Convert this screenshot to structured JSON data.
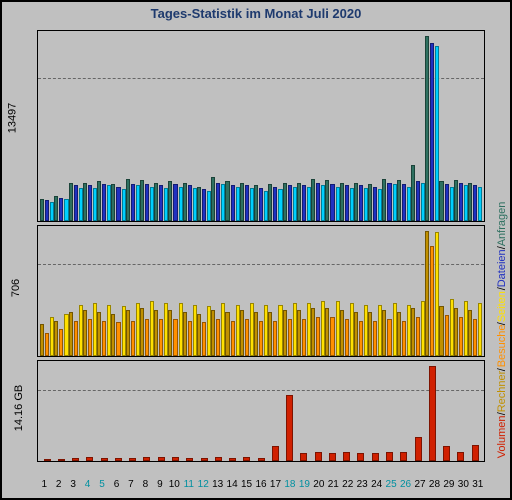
{
  "title": "Tages-Statistik im Monat Juli 2020",
  "title_color": "#1e3a6e",
  "background": "#c0c0c0",
  "border_color": "#000000",
  "days": [
    1,
    2,
    3,
    4,
    5,
    6,
    7,
    8,
    9,
    10,
    11,
    12,
    13,
    14,
    15,
    16,
    17,
    18,
    19,
    20,
    21,
    22,
    23,
    24,
    25,
    26,
    27,
    28,
    29,
    30,
    31
  ],
  "weekend_days": [
    4,
    5,
    11,
    12,
    18,
    19,
    25,
    26
  ],
  "day_label_color": "#000000",
  "weekend_color": "#0090a0",
  "panels": {
    "top": {
      "ymax": 13497,
      "ylabel": "13497",
      "grid_at": [
        0.75
      ],
      "series_colors": [
        "#2e7060",
        "#2030c0",
        "#00d0ff"
      ],
      "data": [
        [
          1600,
          1800,
          2800,
          2800,
          2900,
          2700,
          3100,
          3000,
          2800,
          2900,
          2800,
          2500,
          3200,
          2900,
          2800,
          2600,
          2700,
          2800,
          2800,
          3100,
          3000,
          2800,
          2800,
          2700,
          3100,
          3000,
          4100,
          13497,
          2900,
          3000,
          2800
        ],
        [
          1500,
          1700,
          2600,
          2600,
          2700,
          2500,
          2700,
          2700,
          2600,
          2700,
          2600,
          2300,
          2800,
          2600,
          2600,
          2400,
          2500,
          2600,
          2600,
          2800,
          2700,
          2600,
          2600,
          2500,
          2800,
          2700,
          2900,
          13000,
          2700,
          2800,
          2600
        ],
        [
          1400,
          1600,
          2400,
          2400,
          2600,
          2300,
          2600,
          2500,
          2400,
          2500,
          2400,
          2200,
          2700,
          2500,
          2400,
          2200,
          2300,
          2500,
          2500,
          2600,
          2500,
          2400,
          2400,
          2300,
          2700,
          2500,
          2800,
          12800,
          2500,
          2600,
          2500
        ]
      ]
    },
    "mid": {
      "ymax": 706,
      "ylabel": "706",
      "grid_at": [
        0.7
      ],
      "series_colors": [
        "#c09000",
        "#ff9000",
        "#ffe000"
      ],
      "data": [
        [
          180,
          200,
          250,
          260,
          250,
          240,
          260,
          270,
          260,
          260,
          250,
          240,
          260,
          250,
          260,
          250,
          250,
          260,
          260,
          270,
          270,
          260,
          250,
          250,
          260,
          250,
          270,
          706,
          280,
          270,
          260
        ],
        [
          130,
          150,
          200,
          210,
          200,
          190,
          200,
          210,
          210,
          210,
          200,
          190,
          210,
          200,
          210,
          200,
          200,
          210,
          210,
          220,
          220,
          210,
          200,
          200,
          210,
          200,
          220,
          620,
          230,
          220,
          210
        ],
        [
          220,
          240,
          290,
          300,
          290,
          280,
          300,
          310,
          300,
          300,
          290,
          280,
          300,
          290,
          300,
          290,
          290,
          300,
          300,
          310,
          310,
          300,
          290,
          290,
          300,
          290,
          310,
          700,
          320,
          310,
          300
        ]
      ]
    },
    "bot": {
      "ymax": 14.16,
      "ylabel": "14.16 GB",
      "grid_at": [
        0.7
      ],
      "series_colors": [
        "#d02000"
      ],
      "data": [
        [
          0.3,
          0.3,
          0.5,
          0.6,
          0.5,
          0.5,
          0.5,
          0.6,
          0.6,
          0.6,
          0.5,
          0.5,
          0.6,
          0.5,
          0.6,
          0.5,
          2.2,
          9.8,
          1.2,
          1.4,
          1.2,
          1.4,
          1.2,
          1.2,
          1.3,
          1.3,
          3.6,
          14.16,
          2.2,
          1.4,
          2.4
        ]
      ]
    }
  },
  "legend": [
    {
      "label": "Volumen",
      "color": "#d02000"
    },
    {
      "label": "Rechner",
      "color": "#c09000"
    },
    {
      "label": "Besuche",
      "color": "#ff9000"
    },
    {
      "label": "Seiten",
      "color": "#ffe000"
    },
    {
      "label": "Dateien",
      "color": "#2030c0"
    },
    {
      "label": "Anfragen",
      "color": "#2e7060"
    }
  ]
}
